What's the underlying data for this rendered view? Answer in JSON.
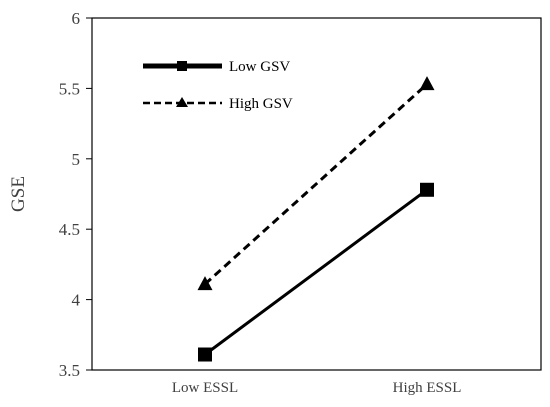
{
  "chart_data": {
    "type": "line",
    "title": "",
    "xlabel": "",
    "ylabel": "GSE",
    "categories": [
      "Low ESSL",
      "High ESSL"
    ],
    "ylim": [
      3.5,
      6
    ],
    "yticks": [
      "3.5",
      "4",
      "4.5",
      "5",
      "5.5",
      "6"
    ],
    "grid": false,
    "legend": "top-left",
    "series": [
      {
        "name": "Low GSV",
        "values": [
          3.61,
          4.78
        ],
        "line": "solid",
        "marker": "square",
        "color": "#000000"
      },
      {
        "name": "High GSV",
        "values": [
          4.11,
          5.53
        ],
        "line": "dashed",
        "marker": "triangle",
        "color": "#000000"
      }
    ]
  }
}
